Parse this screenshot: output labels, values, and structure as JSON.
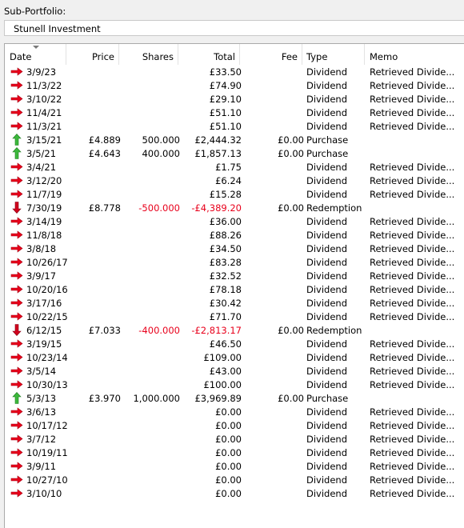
{
  "sub_portfolio": {
    "label": "Sub-Portfolio:",
    "value": "Stunell Investment"
  },
  "columns": [
    "Date",
    "Price",
    "Shares",
    "Total",
    "Fee",
    "Type",
    "Memo"
  ],
  "colors": {
    "negative": "#e8001b",
    "dividend_arrow": "#e8001b",
    "purchase_arrow": "#2ea52e",
    "redemption_arrow": "#c0001a"
  },
  "rows": [
    {
      "icon": "dividend-arrow-icon",
      "date": "3/9/23",
      "price": "",
      "shares": "",
      "total": "£33.50",
      "fee": "",
      "type": "Dividend",
      "memo": "Retrieved Divide...",
      "negative": false
    },
    {
      "icon": "dividend-arrow-icon",
      "date": "11/3/22",
      "price": "",
      "shares": "",
      "total": "£74.90",
      "fee": "",
      "type": "Dividend",
      "memo": "Retrieved Divide...",
      "negative": false
    },
    {
      "icon": "dividend-arrow-icon",
      "date": "3/10/22",
      "price": "",
      "shares": "",
      "total": "£29.10",
      "fee": "",
      "type": "Dividend",
      "memo": "Retrieved Divide...",
      "negative": false
    },
    {
      "icon": "dividend-arrow-icon",
      "date": "11/4/21",
      "price": "",
      "shares": "",
      "total": "£51.10",
      "fee": "",
      "type": "Dividend",
      "memo": "Retrieved Divide...",
      "negative": false
    },
    {
      "icon": "dividend-arrow-icon",
      "date": "11/3/21",
      "price": "",
      "shares": "",
      "total": "£51.10",
      "fee": "",
      "type": "Dividend",
      "memo": "Retrieved Divide...",
      "negative": false
    },
    {
      "icon": "purchase-arrow-icon",
      "date": "3/15/21",
      "price": "£4.889",
      "shares": "500.000",
      "total": "£2,444.32",
      "fee": "£0.00",
      "type": "Purchase",
      "memo": "",
      "negative": false
    },
    {
      "icon": "purchase-arrow-icon",
      "date": "3/5/21",
      "price": "£4.643",
      "shares": "400.000",
      "total": "£1,857.13",
      "fee": "£0.00",
      "type": "Purchase",
      "memo": "",
      "negative": false
    },
    {
      "icon": "dividend-arrow-icon",
      "date": "3/4/21",
      "price": "",
      "shares": "",
      "total": "£1.75",
      "fee": "",
      "type": "Dividend",
      "memo": "Retrieved Divide...",
      "negative": false
    },
    {
      "icon": "dividend-arrow-icon",
      "date": "3/12/20",
      "price": "",
      "shares": "",
      "total": "£6.24",
      "fee": "",
      "type": "Dividend",
      "memo": "Retrieved Divide...",
      "negative": false
    },
    {
      "icon": "dividend-arrow-icon",
      "date": "11/7/19",
      "price": "",
      "shares": "",
      "total": "£15.28",
      "fee": "",
      "type": "Dividend",
      "memo": "Retrieved Divide...",
      "negative": false
    },
    {
      "icon": "redemption-arrow-icon",
      "date": "7/30/19",
      "price": "£8.778",
      "shares": "-500.000",
      "total": "-£4,389.20",
      "fee": "£0.00",
      "type": "Redemption",
      "memo": "",
      "negative": true
    },
    {
      "icon": "dividend-arrow-icon",
      "date": "3/14/19",
      "price": "",
      "shares": "",
      "total": "£36.00",
      "fee": "",
      "type": "Dividend",
      "memo": "Retrieved Divide...",
      "negative": false
    },
    {
      "icon": "dividend-arrow-icon",
      "date": "11/8/18",
      "price": "",
      "shares": "",
      "total": "£88.26",
      "fee": "",
      "type": "Dividend",
      "memo": "Retrieved Divide...",
      "negative": false
    },
    {
      "icon": "dividend-arrow-icon",
      "date": "3/8/18",
      "price": "",
      "shares": "",
      "total": "£34.50",
      "fee": "",
      "type": "Dividend",
      "memo": "Retrieved Divide...",
      "negative": false
    },
    {
      "icon": "dividend-arrow-icon",
      "date": "10/26/17",
      "price": "",
      "shares": "",
      "total": "£83.28",
      "fee": "",
      "type": "Dividend",
      "memo": "Retrieved Divide...",
      "negative": false
    },
    {
      "icon": "dividend-arrow-icon",
      "date": "3/9/17",
      "price": "",
      "shares": "",
      "total": "£32.52",
      "fee": "",
      "type": "Dividend",
      "memo": "Retrieved Divide...",
      "negative": false
    },
    {
      "icon": "dividend-arrow-icon",
      "date": "10/20/16",
      "price": "",
      "shares": "",
      "total": "£78.18",
      "fee": "",
      "type": "Dividend",
      "memo": "Retrieved Divide...",
      "negative": false
    },
    {
      "icon": "dividend-arrow-icon",
      "date": "3/17/16",
      "price": "",
      "shares": "",
      "total": "£30.42",
      "fee": "",
      "type": "Dividend",
      "memo": "Retrieved Divide...",
      "negative": false
    },
    {
      "icon": "dividend-arrow-icon",
      "date": "10/22/15",
      "price": "",
      "shares": "",
      "total": "£71.70",
      "fee": "",
      "type": "Dividend",
      "memo": "Retrieved Divide...",
      "negative": false
    },
    {
      "icon": "redemption-arrow-icon",
      "date": "6/12/15",
      "price": "£7.033",
      "shares": "-400.000",
      "total": "-£2,813.17",
      "fee": "£0.00",
      "type": "Redemption",
      "memo": "",
      "negative": true
    },
    {
      "icon": "dividend-arrow-icon",
      "date": "3/19/15",
      "price": "",
      "shares": "",
      "total": "£46.50",
      "fee": "",
      "type": "Dividend",
      "memo": "Retrieved Divide...",
      "negative": false
    },
    {
      "icon": "dividend-arrow-icon",
      "date": "10/23/14",
      "price": "",
      "shares": "",
      "total": "£109.00",
      "fee": "",
      "type": "Dividend",
      "memo": "Retrieved Divide...",
      "negative": false
    },
    {
      "icon": "dividend-arrow-icon",
      "date": "3/5/14",
      "price": "",
      "shares": "",
      "total": "£43.00",
      "fee": "",
      "type": "Dividend",
      "memo": "Retrieved Divide...",
      "negative": false
    },
    {
      "icon": "dividend-arrow-icon",
      "date": "10/30/13",
      "price": "",
      "shares": "",
      "total": "£100.00",
      "fee": "",
      "type": "Dividend",
      "memo": "Retrieved Divide...",
      "negative": false
    },
    {
      "icon": "purchase-arrow-icon",
      "date": "5/3/13",
      "price": "£3.970",
      "shares": "1,000.000",
      "total": "£3,969.89",
      "fee": "£0.00",
      "type": "Purchase",
      "memo": "",
      "negative": false
    },
    {
      "icon": "dividend-arrow-icon",
      "date": "3/6/13",
      "price": "",
      "shares": "",
      "total": "£0.00",
      "fee": "",
      "type": "Dividend",
      "memo": "Retrieved Divide...",
      "negative": false
    },
    {
      "icon": "dividend-arrow-icon",
      "date": "10/17/12",
      "price": "",
      "shares": "",
      "total": "£0.00",
      "fee": "",
      "type": "Dividend",
      "memo": "Retrieved Divide...",
      "negative": false
    },
    {
      "icon": "dividend-arrow-icon",
      "date": "3/7/12",
      "price": "",
      "shares": "",
      "total": "£0.00",
      "fee": "",
      "type": "Dividend",
      "memo": "Retrieved Divide...",
      "negative": false
    },
    {
      "icon": "dividend-arrow-icon",
      "date": "10/19/11",
      "price": "",
      "shares": "",
      "total": "£0.00",
      "fee": "",
      "type": "Dividend",
      "memo": "Retrieved Divide...",
      "negative": false
    },
    {
      "icon": "dividend-arrow-icon",
      "date": "3/9/11",
      "price": "",
      "shares": "",
      "total": "£0.00",
      "fee": "",
      "type": "Dividend",
      "memo": "Retrieved Divide...",
      "negative": false
    },
    {
      "icon": "dividend-arrow-icon",
      "date": "10/27/10",
      "price": "",
      "shares": "",
      "total": "£0.00",
      "fee": "",
      "type": "Dividend",
      "memo": "Retrieved Divide...",
      "negative": false
    },
    {
      "icon": "dividend-arrow-icon",
      "date": "3/10/10",
      "price": "",
      "shares": "",
      "total": "£0.00",
      "fee": "",
      "type": "Dividend",
      "memo": "Retrieved Divide...",
      "negative": false
    }
  ]
}
